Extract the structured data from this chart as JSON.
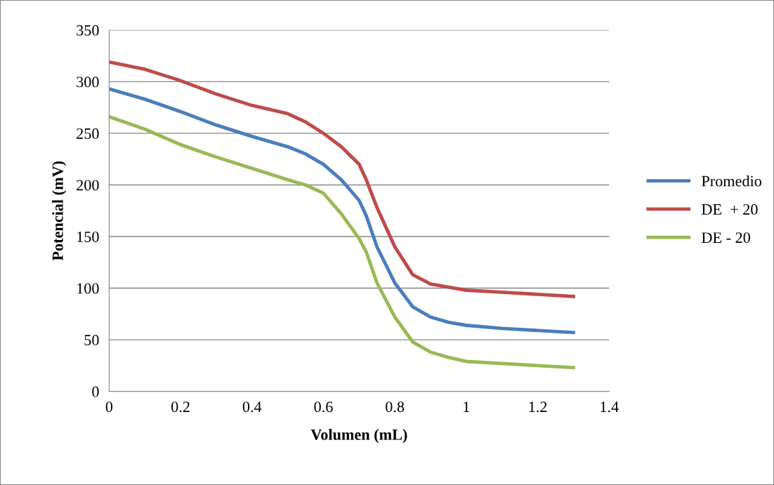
{
  "chart_data": {
    "type": "line",
    "xlabel": "Volumen (mL)",
    "ylabel": "Potencial (mV)",
    "x": [
      0,
      0.1,
      0.2,
      0.3,
      0.4,
      0.5,
      0.55,
      0.6,
      0.65,
      0.7,
      0.72,
      0.75,
      0.8,
      0.85,
      0.9,
      0.95,
      1.0,
      1.1,
      1.2,
      1.3
    ],
    "series": [
      {
        "name": "Promedio",
        "color": "#4a7ebb",
        "values": [
          293,
          283,
          271,
          258,
          247,
          237,
          230,
          220,
          205,
          185,
          170,
          140,
          105,
          82,
          72,
          67,
          64,
          61,
          59,
          57
        ]
      },
      {
        "name": "DE  + 20",
        "color": "#be4b48",
        "values": [
          319,
          312,
          301,
          288,
          277,
          269,
          261,
          250,
          237,
          220,
          205,
          178,
          140,
          113,
          104,
          101,
          98,
          96,
          94,
          92
        ]
      },
      {
        "name": "DE - 20",
        "color": "#98b954",
        "values": [
          266,
          254,
          239,
          227,
          216,
          205,
          200,
          192,
          172,
          148,
          135,
          105,
          72,
          48,
          38,
          33,
          29,
          27,
          25,
          23
        ]
      }
    ],
    "xlim": [
      0,
      1.4
    ],
    "xticks": [
      0,
      0.2,
      0.4,
      0.6,
      0.8,
      1,
      1.2,
      1.4
    ],
    "ylim": [
      0,
      350
    ],
    "yticks": [
      0,
      50,
      100,
      150,
      200,
      250,
      300,
      350
    ],
    "grid": "y",
    "legend": "right",
    "marker": "none",
    "line_style": "solid"
  }
}
